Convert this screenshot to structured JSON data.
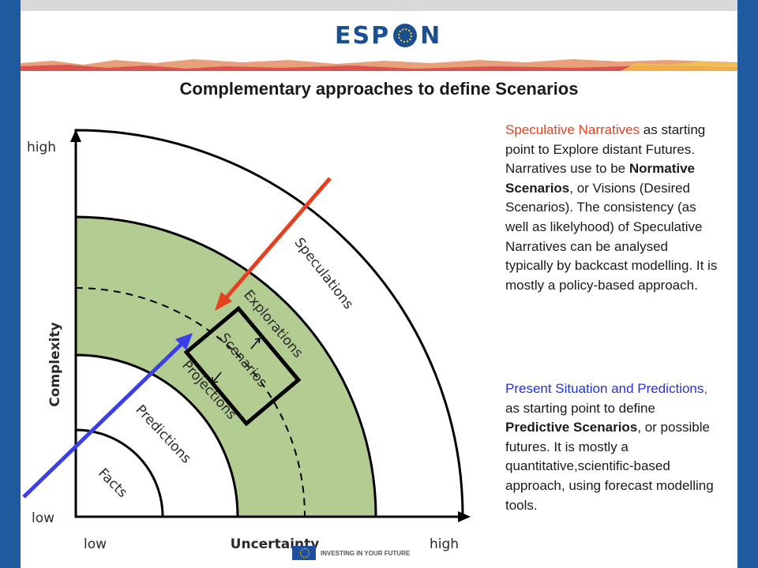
{
  "header": {
    "logo_left": "ESP",
    "logo_right": "N",
    "logo_o_icon": "eu-star-circle-icon"
  },
  "title": "Complementary approaches to define Scenarios",
  "diagram": {
    "y_axis_label": "Complexity",
    "y_high": "high",
    "y_low": "low",
    "x_axis_label": "Uncertainty",
    "x_low": "low",
    "x_high": "high",
    "bands": [
      "Facts",
      "Predictions",
      "Projections",
      "Scenarios",
      "Explorations",
      "Speculations"
    ],
    "colors": {
      "green_band": "#b3cc92",
      "red_arrow": "#e3411f",
      "blue_arrow": "#3b3fe8",
      "box": "#000000"
    }
  },
  "text_one": {
    "lead": "Speculative Narratives",
    "p1": " as starting point to Explore distant Futures. Narratives use to be ",
    "b1": "Normative Scenarios",
    "p2": ", or Visions (Desired Scenarios). The consistency (as well as likelyhood) of Speculative Narratives can be analysed typically by backcast modelling. It is mostly a policy-based approach."
  },
  "text_two": {
    "lead": "Present Situation and Predictions",
    "comma": ",",
    "p1": " as starting point to define ",
    "b1": "Predictive Scenarios",
    "p2": ", or possible futures. It is mostly a quantitative,scientific-based approach, using forecast modelling tools."
  },
  "footer": {
    "text": "INVESTING IN YOUR FUTURE"
  }
}
